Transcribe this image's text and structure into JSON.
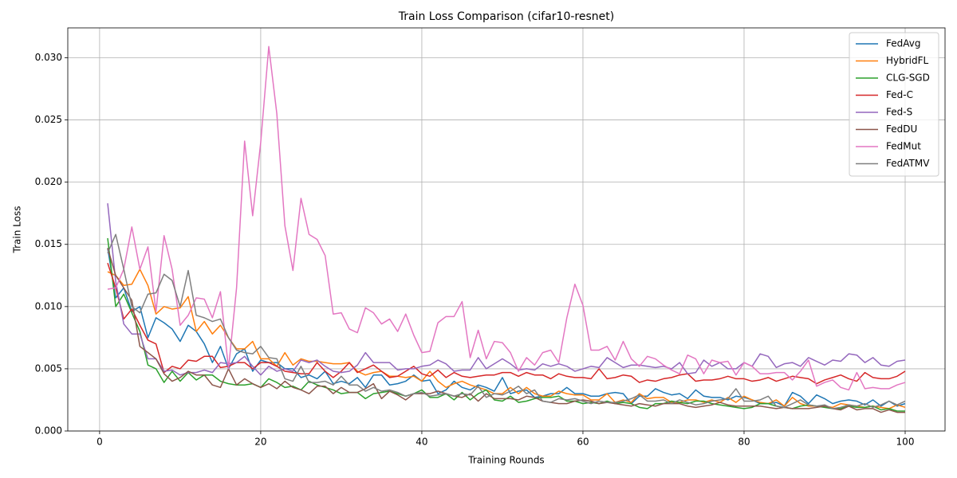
{
  "chart_data": {
    "type": "line",
    "title": "Train Loss Comparison (cifar10-resnet)",
    "x_label": "Training Rounds",
    "y_label": "Train Loss",
    "x": [
      1,
      2,
      3,
      4,
      5,
      6,
      7,
      8,
      9,
      10,
      11,
      12,
      13,
      14,
      15,
      16,
      17,
      18,
      19,
      20,
      21,
      22,
      23,
      24,
      25,
      26,
      27,
      28,
      29,
      30,
      31,
      32,
      33,
      34,
      35,
      36,
      37,
      38,
      39,
      40,
      41,
      42,
      43,
      44,
      45,
      46,
      47,
      48,
      49,
      50,
      51,
      52,
      53,
      54,
      55,
      56,
      57,
      58,
      59,
      60,
      61,
      62,
      63,
      64,
      65,
      66,
      67,
      68,
      69,
      70,
      71,
      72,
      73,
      74,
      75,
      76,
      77,
      78,
      79,
      80,
      81,
      82,
      83,
      84,
      85,
      86,
      87,
      88,
      89,
      90,
      91,
      92,
      93,
      94,
      95,
      96,
      97,
      98,
      99,
      100
    ],
    "xlim": [
      -3.95,
      104.95
    ],
    "xticks": [
      0,
      20,
      40,
      60,
      80,
      100
    ],
    "ylim": [
      0,
      0.0324
    ],
    "yticks": [
      {
        "value": 0,
        "label": "0.000"
      },
      {
        "value": 0.005,
        "label": "0.005"
      },
      {
        "value": 0.01,
        "label": "0.010"
      },
      {
        "value": 0.015,
        "label": "0.015"
      },
      {
        "value": 0.02,
        "label": "0.020"
      },
      {
        "value": 0.025,
        "label": "0.025"
      },
      {
        "value": 0.03,
        "label": "0.030"
      }
    ],
    "grid": true,
    "legend": "upper-right",
    "series": [
      {
        "name": "FedAvg",
        "color": "#1f77b4",
        "values": [
          0.0147,
          0.0107,
          0.0115,
          0.0096,
          0.01,
          0.0075,
          0.0091,
          0.0087,
          0.0082,
          0.0072,
          0.0085,
          0.008,
          0.007,
          0.0055,
          0.0068,
          0.005,
          0.0062,
          0.0066,
          0.0048,
          0.0057,
          0.0055,
          0.0055,
          0.005,
          0.005,
          0.0043,
          0.0045,
          0.0042,
          0.0048,
          0.0038,
          0.004,
          0.0038,
          0.0043,
          0.0035,
          0.0045,
          0.0045,
          0.0037,
          0.0038,
          0.004,
          0.0045,
          0.004,
          0.0041,
          0.003,
          0.0033,
          0.004,
          0.0035,
          0.0033,
          0.0037,
          0.0035,
          0.0032,
          0.0043,
          0.003,
          0.0032,
          0.0033,
          0.0027,
          0.0028,
          0.003,
          0.003,
          0.0035,
          0.003,
          0.003,
          0.0028,
          0.0028,
          0.003,
          0.0031,
          0.003,
          0.0022,
          0.0028,
          0.0028,
          0.0034,
          0.0031,
          0.0029,
          0.003,
          0.0026,
          0.0033,
          0.0028,
          0.0027,
          0.0027,
          0.0025,
          0.0028,
          0.0027,
          0.0025,
          0.0022,
          0.0022,
          0.0023,
          0.002,
          0.0031,
          0.0028,
          0.0022,
          0.0029,
          0.0026,
          0.0022,
          0.0024,
          0.0025,
          0.0024,
          0.0021,
          0.0025,
          0.002,
          0.0024,
          0.002,
          0.0022
        ]
      },
      {
        "name": "HybridFL",
        "color": "#ff7f0e",
        "values": [
          0.0128,
          0.0125,
          0.0117,
          0.0118,
          0.013,
          0.0117,
          0.0094,
          0.01,
          0.0098,
          0.0099,
          0.0108,
          0.008,
          0.0088,
          0.0078,
          0.0085,
          0.0075,
          0.0066,
          0.0066,
          0.0072,
          0.0058,
          0.0058,
          0.0052,
          0.0063,
          0.0053,
          0.0058,
          0.0056,
          0.0056,
          0.0055,
          0.0054,
          0.0054,
          0.0055,
          0.0048,
          0.0045,
          0.0047,
          0.0048,
          0.0044,
          0.0044,
          0.0043,
          0.0044,
          0.004,
          0.0048,
          0.004,
          0.0035,
          0.0038,
          0.004,
          0.0037,
          0.0035,
          0.0033,
          0.003,
          0.003,
          0.0035,
          0.003,
          0.0035,
          0.003,
          0.0028,
          0.0028,
          0.0032,
          0.003,
          0.0029,
          0.0029,
          0.0025,
          0.0025,
          0.003,
          0.0023,
          0.0025,
          0.0023,
          0.003,
          0.0026,
          0.0027,
          0.0027,
          0.0023,
          0.0023,
          0.0025,
          0.0025,
          0.0023,
          0.0025,
          0.0023,
          0.0027,
          0.0023,
          0.0028,
          0.0025,
          0.0023,
          0.0022,
          0.0025,
          0.002,
          0.0027,
          0.0022,
          0.002,
          0.002,
          0.002,
          0.0019,
          0.0022,
          0.0021,
          0.002,
          0.0019,
          0.002,
          0.0019,
          0.0018,
          0.0021,
          0.0019
        ]
      },
      {
        "name": "CLG-SGD",
        "color": "#2ca02c",
        "values": [
          0.0155,
          0.01,
          0.011,
          0.0095,
          0.008,
          0.0053,
          0.005,
          0.0039,
          0.0048,
          0.004,
          0.0047,
          0.0041,
          0.0045,
          0.0045,
          0.004,
          0.0038,
          0.0037,
          0.0037,
          0.0038,
          0.0035,
          0.0042,
          0.0039,
          0.0035,
          0.0036,
          0.0033,
          0.004,
          0.0037,
          0.0035,
          0.0033,
          0.003,
          0.0031,
          0.0031,
          0.0026,
          0.003,
          0.0031,
          0.0032,
          0.003,
          0.0028,
          0.003,
          0.0033,
          0.0027,
          0.0027,
          0.003,
          0.0025,
          0.0031,
          0.0025,
          0.003,
          0.0033,
          0.0025,
          0.0024,
          0.0028,
          0.0023,
          0.0024,
          0.0026,
          0.0027,
          0.0027,
          0.0028,
          0.0024,
          0.0024,
          0.0022,
          0.0023,
          0.0022,
          0.0024,
          0.0022,
          0.0023,
          0.0022,
          0.0019,
          0.0018,
          0.0022,
          0.0022,
          0.0024,
          0.0023,
          0.0022,
          0.0024,
          0.0024,
          0.0022,
          0.0021,
          0.002,
          0.0019,
          0.0018,
          0.0019,
          0.0022,
          0.0022,
          0.002,
          0.0019,
          0.0018,
          0.002,
          0.0021,
          0.002,
          0.0019,
          0.0018,
          0.0018,
          0.002,
          0.0019,
          0.0019,
          0.002,
          0.0017,
          0.0018,
          0.0016,
          0.0016
        ]
      },
      {
        "name": "Fed-C",
        "color": "#d62728",
        "values": [
          0.0135,
          0.0115,
          0.009,
          0.0098,
          0.0085,
          0.0073,
          0.007,
          0.0047,
          0.0052,
          0.005,
          0.0057,
          0.0056,
          0.006,
          0.006,
          0.0051,
          0.0052,
          0.0055,
          0.0055,
          0.005,
          0.0055,
          0.0055,
          0.0052,
          0.0048,
          0.0047,
          0.0046,
          0.0046,
          0.0055,
          0.0048,
          0.0043,
          0.0048,
          0.0055,
          0.0047,
          0.005,
          0.0053,
          0.0048,
          0.0043,
          0.0044,
          0.0048,
          0.0052,
          0.0046,
          0.0044,
          0.0049,
          0.0043,
          0.0047,
          0.0044,
          0.0043,
          0.0044,
          0.0045,
          0.0045,
          0.0047,
          0.0047,
          0.0044,
          0.0047,
          0.0045,
          0.0045,
          0.0042,
          0.0046,
          0.0044,
          0.0043,
          0.0043,
          0.0042,
          0.005,
          0.0042,
          0.0043,
          0.0045,
          0.0044,
          0.0039,
          0.0041,
          0.004,
          0.0042,
          0.0043,
          0.0045,
          0.0046,
          0.004,
          0.0041,
          0.0041,
          0.0042,
          0.0044,
          0.0042,
          0.0042,
          0.004,
          0.0041,
          0.0043,
          0.004,
          0.0042,
          0.0044,
          0.0043,
          0.0042,
          0.0038,
          0.0041,
          0.0043,
          0.0045,
          0.0042,
          0.004,
          0.0047,
          0.0043,
          0.0042,
          0.0042,
          0.0044,
          0.0048
        ]
      },
      {
        "name": "Fed-S",
        "color": "#9467bd",
        "values": [
          0.0183,
          0.012,
          0.0086,
          0.0078,
          0.0078,
          0.0058,
          0.0058,
          0.0048,
          0.0049,
          0.0045,
          0.0047,
          0.0047,
          0.0049,
          0.0047,
          0.0055,
          0.0054,
          0.0055,
          0.006,
          0.0052,
          0.0045,
          0.0052,
          0.0048,
          0.005,
          0.0048,
          0.0057,
          0.0055,
          0.0057,
          0.0052,
          0.0048,
          0.0047,
          0.0048,
          0.0053,
          0.0063,
          0.0055,
          0.0055,
          0.0055,
          0.0049,
          0.005,
          0.005,
          0.0052,
          0.0053,
          0.0057,
          0.0054,
          0.0048,
          0.0049,
          0.0049,
          0.0059,
          0.005,
          0.0054,
          0.0058,
          0.0054,
          0.0049,
          0.005,
          0.0049,
          0.0054,
          0.0052,
          0.0054,
          0.0052,
          0.0048,
          0.005,
          0.0052,
          0.0051,
          0.0059,
          0.0055,
          0.0051,
          0.0053,
          0.0053,
          0.0052,
          0.0051,
          0.0052,
          0.005,
          0.0055,
          0.0046,
          0.0047,
          0.0057,
          0.0052,
          0.0055,
          0.005,
          0.005,
          0.0055,
          0.0052,
          0.0062,
          0.006,
          0.0051,
          0.0054,
          0.0055,
          0.0052,
          0.0059,
          0.0056,
          0.0053,
          0.0057,
          0.0056,
          0.0062,
          0.0061,
          0.0055,
          0.0059,
          0.0053,
          0.0052,
          0.0056,
          0.0057
        ]
      },
      {
        "name": "FedDU",
        "color": "#8c564b",
        "values": [
          0.0147,
          0.0125,
          0.0115,
          0.0105,
          0.0068,
          0.0063,
          0.0058,
          0.0046,
          0.004,
          0.0043,
          0.0048,
          0.0045,
          0.0045,
          0.0037,
          0.0035,
          0.005,
          0.0037,
          0.0042,
          0.0038,
          0.0035,
          0.0038,
          0.0034,
          0.004,
          0.0035,
          0.0033,
          0.003,
          0.0036,
          0.0036,
          0.003,
          0.0035,
          0.0031,
          0.0031,
          0.0034,
          0.0038,
          0.0026,
          0.0032,
          0.0029,
          0.0025,
          0.003,
          0.003,
          0.003,
          0.0032,
          0.003,
          0.0028,
          0.0027,
          0.003,
          0.0024,
          0.003,
          0.0026,
          0.0026,
          0.0026,
          0.0025,
          0.0028,
          0.0027,
          0.0024,
          0.0023,
          0.0022,
          0.0022,
          0.0024,
          0.0025,
          0.0024,
          0.0022,
          0.0023,
          0.0022,
          0.0021,
          0.002,
          0.0022,
          0.0021,
          0.002,
          0.0022,
          0.0022,
          0.0022,
          0.002,
          0.0019,
          0.002,
          0.0021,
          0.0023,
          0.0021,
          0.002,
          0.002,
          0.002,
          0.002,
          0.0019,
          0.0018,
          0.0019,
          0.0018,
          0.0018,
          0.0018,
          0.0019,
          0.002,
          0.0018,
          0.0017,
          0.002,
          0.0017,
          0.0018,
          0.0018,
          0.0015,
          0.0017,
          0.0015,
          0.0015
        ]
      },
      {
        "name": "FedMut",
        "color": "#e377c2",
        "values": [
          0.0114,
          0.0115,
          0.013,
          0.0164,
          0.013,
          0.0148,
          0.0096,
          0.0157,
          0.013,
          0.0085,
          0.0093,
          0.0107,
          0.0106,
          0.0091,
          0.0112,
          0.005,
          0.0115,
          0.0233,
          0.0173,
          0.0232,
          0.0309,
          0.0255,
          0.0165,
          0.0129,
          0.0187,
          0.0158,
          0.0154,
          0.0141,
          0.0094,
          0.0095,
          0.0082,
          0.0079,
          0.0099,
          0.0095,
          0.0086,
          0.009,
          0.008,
          0.0094,
          0.0077,
          0.0063,
          0.0064,
          0.0087,
          0.0092,
          0.0092,
          0.0104,
          0.0059,
          0.0081,
          0.0058,
          0.0072,
          0.0071,
          0.0063,
          0.0048,
          0.0059,
          0.0053,
          0.0063,
          0.0065,
          0.0055,
          0.0091,
          0.0118,
          0.0101,
          0.0065,
          0.0065,
          0.0068,
          0.0057,
          0.0072,
          0.0058,
          0.0052,
          0.006,
          0.0058,
          0.0053,
          0.0049,
          0.0046,
          0.0061,
          0.0058,
          0.0046,
          0.0057,
          0.0055,
          0.0056,
          0.0045,
          0.0055,
          0.0052,
          0.0046,
          0.0046,
          0.0047,
          0.0047,
          0.0041,
          0.0048,
          0.0057,
          0.0036,
          0.0039,
          0.0041,
          0.0035,
          0.0033,
          0.0047,
          0.0034,
          0.0035,
          0.0034,
          0.0034,
          0.0037,
          0.0039
        ]
      },
      {
        "name": "FedATMV",
        "color": "#7f7f7f",
        "values": [
          0.0143,
          0.0158,
          0.013,
          0.01,
          0.0095,
          0.011,
          0.0111,
          0.0126,
          0.0121,
          0.01,
          0.0129,
          0.0093,
          0.0091,
          0.0088,
          0.009,
          0.0075,
          0.0065,
          0.0063,
          0.0062,
          0.0068,
          0.0059,
          0.0058,
          0.0042,
          0.004,
          0.0052,
          0.0039,
          0.0039,
          0.004,
          0.0037,
          0.0044,
          0.0037,
          0.0037,
          0.0032,
          0.0035,
          0.0032,
          0.0033,
          0.0031,
          0.0028,
          0.003,
          0.0031,
          0.0028,
          0.0029,
          0.003,
          0.0028,
          0.003,
          0.0029,
          0.0036,
          0.0027,
          0.003,
          0.0029,
          0.0032,
          0.0036,
          0.003,
          0.0033,
          0.0024,
          0.0023,
          0.0026,
          0.0025,
          0.0026,
          0.0024,
          0.0022,
          0.0024,
          0.0023,
          0.0023,
          0.0024,
          0.0026,
          0.0029,
          0.0024,
          0.0024,
          0.0025,
          0.0022,
          0.0025,
          0.0023,
          0.0021,
          0.0022,
          0.0024,
          0.0025,
          0.0026,
          0.0034,
          0.0024,
          0.0024,
          0.0025,
          0.0028,
          0.002,
          0.0019,
          0.0022,
          0.0025,
          0.0021,
          0.002,
          0.0021,
          0.0018,
          0.0019,
          0.0021,
          0.002,
          0.0022,
          0.0019,
          0.0021,
          0.0024,
          0.0021,
          0.0024
        ]
      }
    ]
  }
}
